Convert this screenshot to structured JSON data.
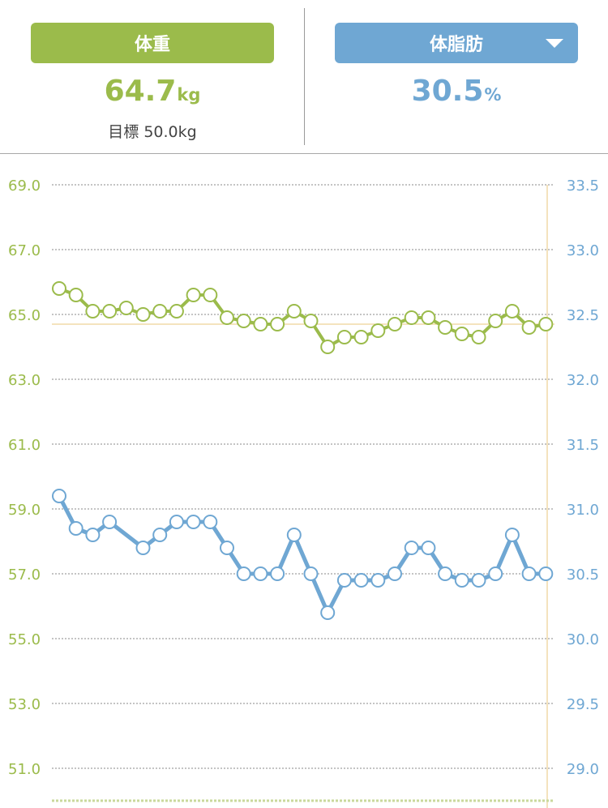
{
  "colors": {
    "weight": "#9bbb4b",
    "fat": "#6fa7d3",
    "goal_line": "#e8c77c",
    "grid": "#888888",
    "marker_fill": "#ffffff"
  },
  "header": {
    "weight": {
      "label": "体重",
      "value": "64.7",
      "unit": "kg",
      "goal_label": "目標",
      "goal_value": "50.0kg"
    },
    "fat": {
      "label": "体脂肪",
      "value": "30.5",
      "unit": "%",
      "dropdown_icon": "triangle-down-icon"
    }
  },
  "chart_data": {
    "type": "line",
    "title": "",
    "xlabel": "",
    "ylabel_left": "",
    "ylabel_right": "",
    "y_left": {
      "range": [
        50,
        69
      ],
      "ticks": [
        "69.0",
        "67.0",
        "65.0",
        "63.0",
        "61.0",
        "59.0",
        "57.0",
        "55.0",
        "53.0",
        "51.0"
      ]
    },
    "y_right": {
      "range": [
        28.75,
        33.5
      ],
      "ticks": [
        "33.5",
        "33.0",
        "32.5",
        "32.0",
        "31.5",
        "31.0",
        "30.5",
        "30.0",
        "29.5",
        "29.0"
      ]
    },
    "grid": true,
    "reference_line": {
      "axis": "left",
      "value": 64.7
    },
    "series": [
      {
        "axis": "left",
        "values": [
          65.8,
          65.6,
          65.1,
          65.1,
          65.2,
          65.0,
          65.1,
          65.1,
          65.6,
          65.6,
          64.9,
          64.8,
          64.7,
          64.7,
          65.1,
          64.8,
          64.0,
          64.3,
          64.3,
          64.5,
          64.7,
          64.9,
          64.9,
          64.6,
          64.4,
          64.3,
          64.8,
          65.1,
          64.6,
          64.7
        ]
      },
      {
        "axis": "right",
        "values": [
          31.1,
          30.85,
          30.8,
          30.9,
          null,
          30.7,
          30.8,
          30.9,
          30.9,
          30.9,
          30.7,
          30.5,
          30.5,
          30.5,
          30.8,
          30.5,
          30.2,
          30.45,
          30.45,
          30.45,
          30.5,
          30.7,
          30.7,
          30.5,
          30.45,
          30.45,
          30.5,
          30.8,
          30.5,
          30.5
        ]
      }
    ]
  }
}
